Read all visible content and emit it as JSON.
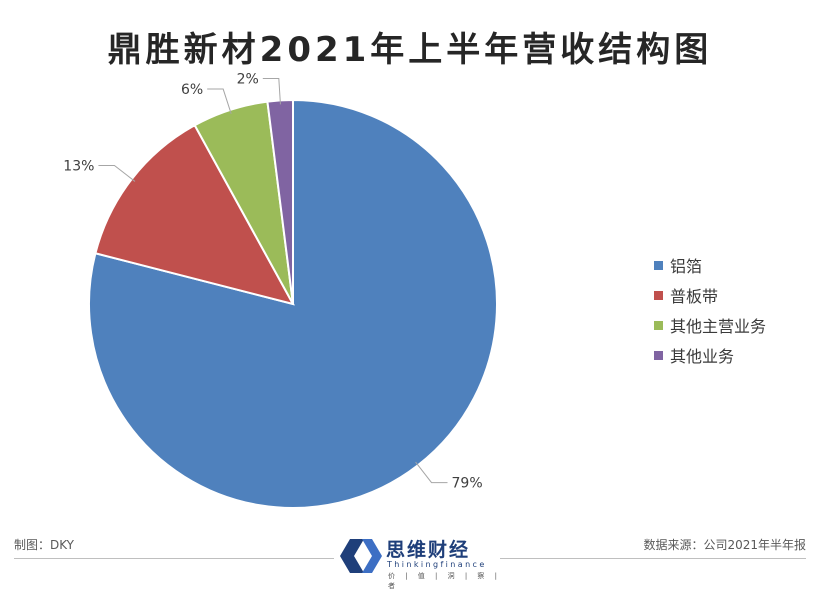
{
  "title": "鼎胜新材2021年上半年营收结构图",
  "chart_data": {
    "type": "pie",
    "title": "鼎胜新材2021年上半年营收结构图",
    "categories": [
      "铝箔",
      "普板带",
      "其他主营业务",
      "其他业务"
    ],
    "values": [
      79,
      13,
      6,
      2
    ],
    "labels": [
      "79%",
      "13%",
      "6%",
      "2%"
    ],
    "colors": [
      "#4f81bd",
      "#c0504d",
      "#9bbb59",
      "#8064a2"
    ],
    "legend_position": "right"
  },
  "footer": {
    "author": "制图：DKY",
    "source": "数据来源：公司2021年半年报"
  },
  "logo": {
    "name": "思维财经",
    "english": "Thinkingfinance",
    "tagline": "价 | 值 | 洞 | 察 | 者"
  }
}
